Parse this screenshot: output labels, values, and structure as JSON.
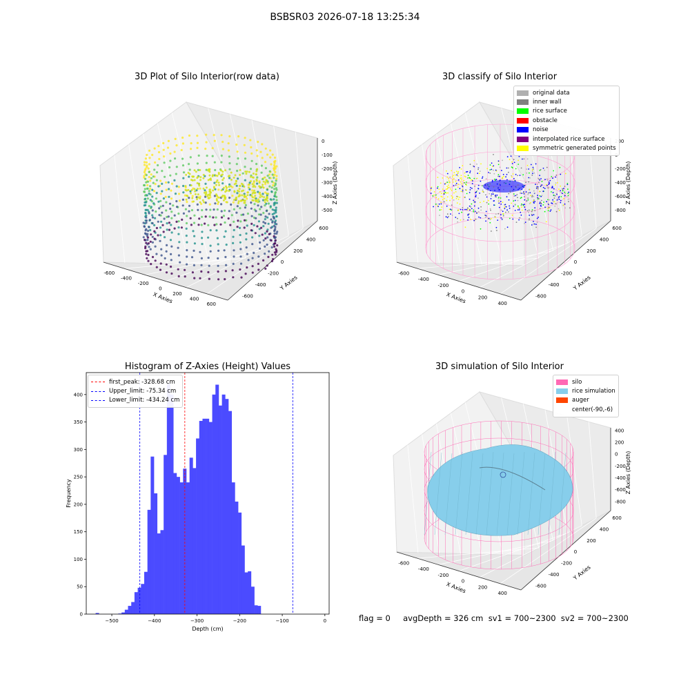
{
  "suptitle": "BSBSR03 2026-07-18 13:25:34",
  "footer": "flag = 0     avgDepth = 326 cm  sv1 = 700~2300  sv2 = 700~2300",
  "chart_data": [
    {
      "type": "scatter",
      "projection": "3d",
      "title": "3D Plot of Silo Interior(row data)",
      "xlabel": "X Axies",
      "ylabel": "Y Axies",
      "zlabel": "Z Axies (Depth)",
      "xticks": [
        "-600",
        "-400",
        "-200",
        "0",
        "200",
        "400",
        "600"
      ],
      "yticks": [
        "600",
        "400",
        "200",
        "0",
        "-200",
        "-400",
        "-600"
      ],
      "zticks": [
        "0",
        "-100",
        "-200",
        "-300",
        "-400",
        "-500"
      ],
      "colormap": "viridis"
    },
    {
      "type": "scatter",
      "projection": "3d",
      "title": "3D classify of Silo Interior",
      "xlabel": "X Axies",
      "ylabel": "Y Axies",
      "zlabel": "Z Axies (Depth)",
      "xticks": [
        "-600",
        "-400",
        "-200",
        "0",
        "200",
        "400"
      ],
      "yticks": [
        "600",
        "400",
        "200",
        "0",
        "-200",
        "-400",
        "-600"
      ],
      "zticks": [
        "200",
        "0",
        "-200",
        "-400",
        "-600",
        "-800"
      ],
      "legend": [
        {
          "label": "original data",
          "color": "#b0b0b0"
        },
        {
          "label": "inner wall",
          "color": "#808080"
        },
        {
          "label": "rice surface",
          "color": "#00ff00"
        },
        {
          "label": "obstacle",
          "color": "#ff0000"
        },
        {
          "label": "noise",
          "color": "#0000ff"
        },
        {
          "label": "interpolated rice surface",
          "color": "#800080"
        },
        {
          "label": "symmetric generated points",
          "color": "#ffff00"
        }
      ],
      "legend_position": "upper right"
    },
    {
      "type": "histogram",
      "title": "Histogram of Z-Axies (Height) Values",
      "xlabel": "Depth (cm)",
      "ylabel": "Frequency",
      "xlim": [
        -560,
        10
      ],
      "ylim": [
        0,
        440
      ],
      "xticks": [
        -500,
        -400,
        -300,
        -200,
        -100,
        0
      ],
      "yticks": [
        0,
        50,
        100,
        150,
        200,
        250,
        300,
        350,
        400
      ],
      "bar_color": "#4b4bff",
      "bin_start": -538,
      "bin_width": 7.6,
      "counts": [
        2,
        0,
        0,
        0,
        0,
        0,
        0,
        1,
        3,
        8,
        15,
        22,
        40,
        48,
        55,
        77,
        190,
        287,
        220,
        147,
        153,
        290,
        420,
        400,
        257,
        250,
        240,
        265,
        240,
        285,
        266,
        320,
        352,
        356,
        356,
        350,
        400,
        418,
        380,
        400,
        392,
        370,
        240,
        205,
        185,
        125,
        76,
        78,
        50,
        16,
        15
      ],
      "lines": [
        {
          "label": "first_peak: -328.68 cm",
          "value": -328.68,
          "color": "#ff0000"
        },
        {
          "label": "Upper_limit: -75.34 cm",
          "value": -75.34,
          "color": "#0000ff"
        },
        {
          "label": "Lower_limit: -434.24 cm",
          "value": -434.24,
          "color": "#0000ff"
        }
      ],
      "legend_position": "upper left"
    },
    {
      "type": "surface",
      "projection": "3d",
      "title": "3D simulation of Silo Interior",
      "xlabel": "X Axies",
      "ylabel": "Y Axies",
      "zlabel": "Z Axies (Depth)",
      "xticks": [
        "-600",
        "-400",
        "-200",
        "0",
        "200",
        "400"
      ],
      "yticks": [
        "600",
        "400",
        "200",
        "0",
        "-200",
        "-400",
        "-600"
      ],
      "zticks": [
        "400",
        "200",
        "0",
        "-200",
        "-400",
        "-600",
        "-800"
      ],
      "legend": [
        {
          "label": "silo",
          "color": "#ff69b4"
        },
        {
          "label": "rice simulation",
          "color": "#87ceeb"
        },
        {
          "label": "auger",
          "color": "#ff4500"
        },
        {
          "label": "center(-90,-6)",
          "color": ""
        }
      ],
      "legend_position": "upper right"
    }
  ]
}
